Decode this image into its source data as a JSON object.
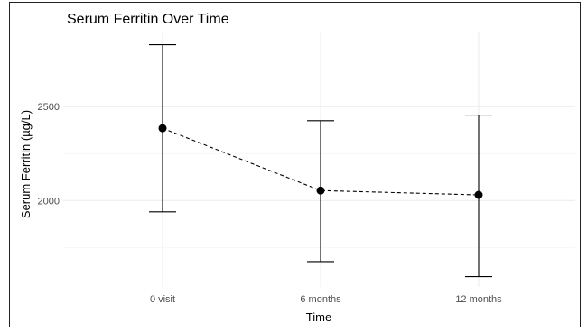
{
  "chart_data": {
    "type": "line",
    "title": "Serum Ferritin Over Time",
    "xlabel": "Time",
    "ylabel": "Serum Ferritin (µg/L)",
    "categories": [
      "0 visit",
      "6 months",
      "12 months"
    ],
    "series": [
      {
        "values": [
          2385,
          2053,
          2030
        ],
        "lower": [
          1940,
          1675,
          1595
        ],
        "upper": [
          2830,
          2425,
          2455
        ]
      }
    ],
    "yticks": [
      2000,
      2500
    ],
    "ylim": [
      1540,
      2900
    ],
    "grid": true,
    "line_style": "dashed",
    "legend": "none"
  }
}
